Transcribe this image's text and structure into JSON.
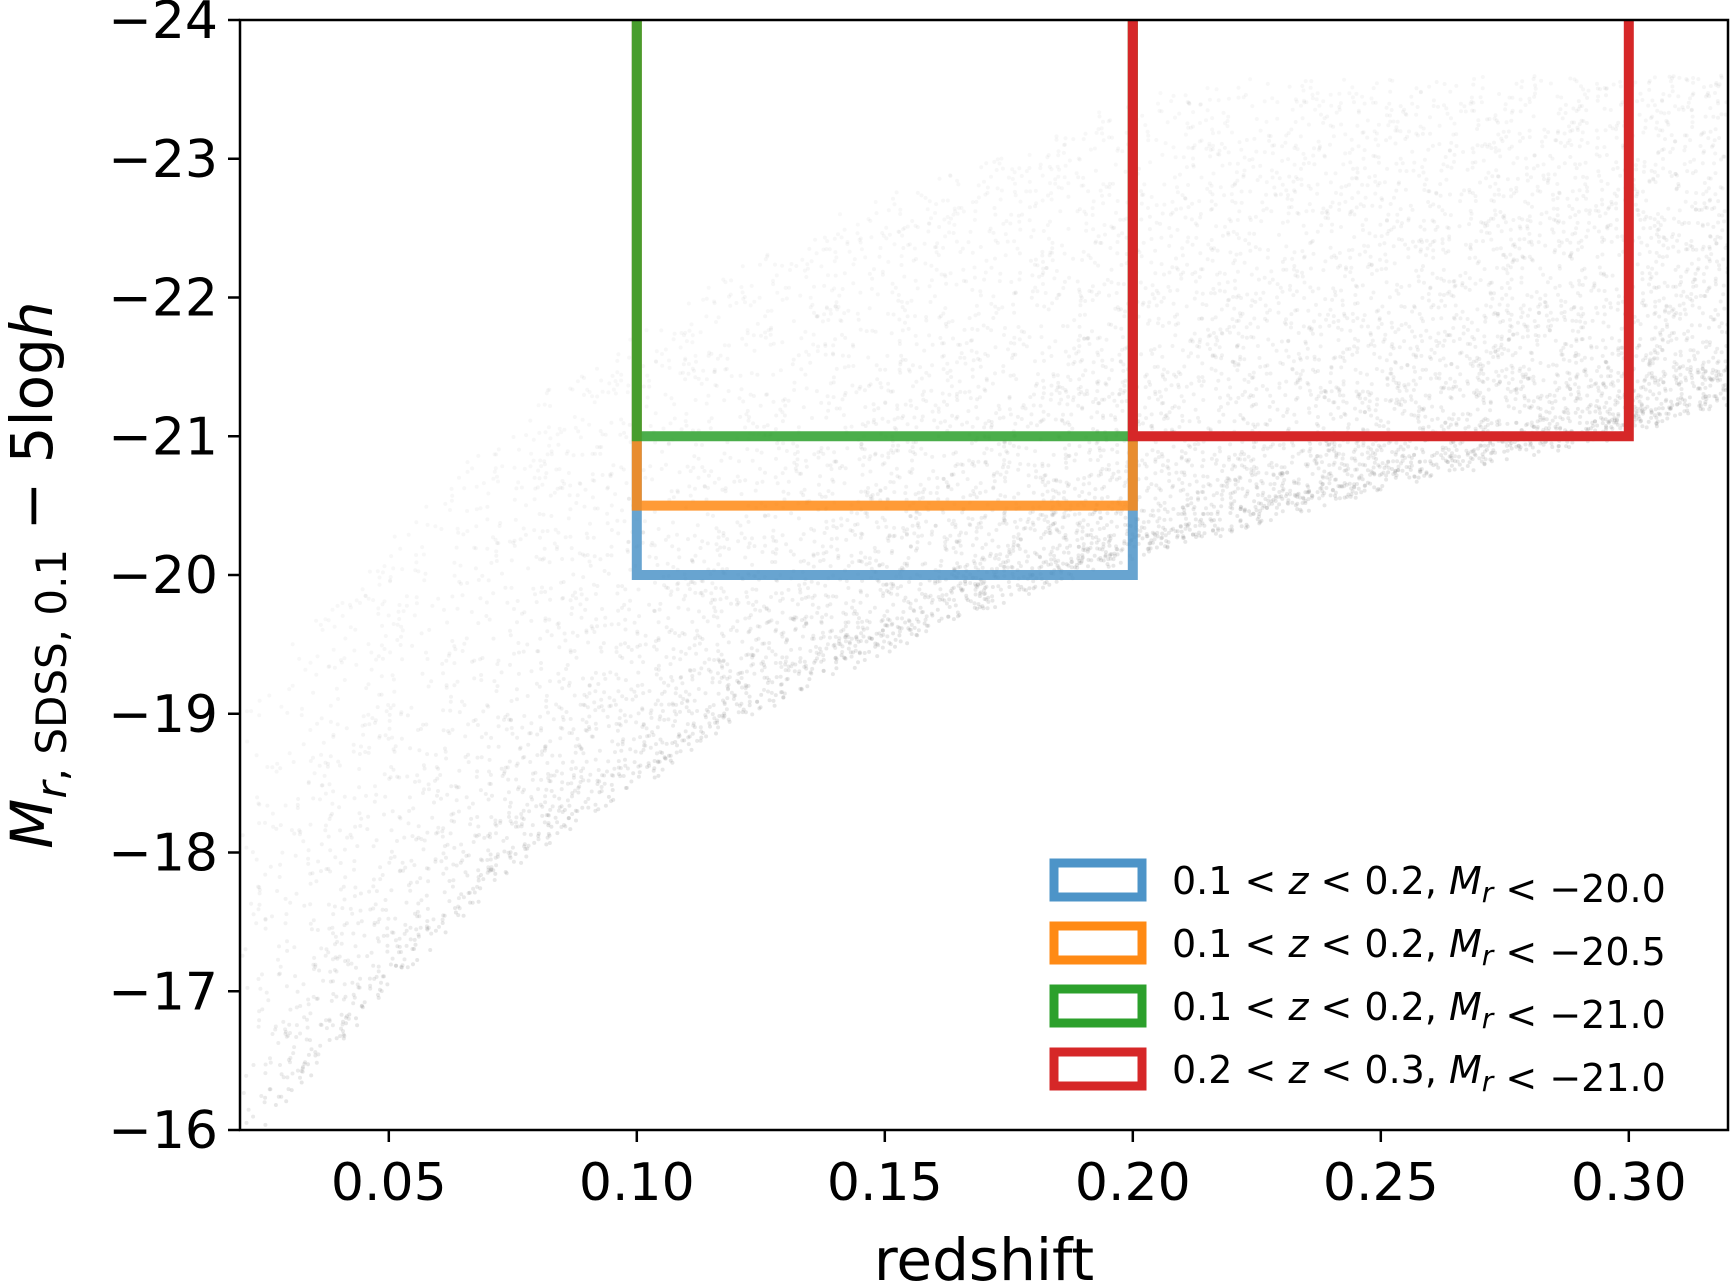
{
  "chart_data": {
    "type": "scatter",
    "title": "",
    "xlabel": "redshift",
    "ylabel": {
      "main": "M",
      "sub_italic": "r",
      "sub_rest": ", SDSS, 0.1",
      "tail": " − 5log",
      "tail_italic": "h"
    },
    "xlim": [
      0.02,
      0.32
    ],
    "ylim": [
      -16,
      -24
    ],
    "y_inverted": true,
    "x_ticks": [
      0.05,
      0.1,
      0.15,
      0.2,
      0.25,
      0.3
    ],
    "x_tick_labels": [
      "0.05",
      "0.10",
      "0.15",
      "0.20",
      "0.25",
      "0.30"
    ],
    "y_ticks": [
      -24,
      -23,
      -22,
      -21,
      -20,
      -19,
      -18,
      -17,
      -16
    ],
    "y_tick_labels": [
      "−24",
      "−23",
      "−22",
      "−21",
      "−20",
      "−19",
      "−18",
      "−17",
      "−16"
    ],
    "grid": false,
    "legend_position": "lower-right",
    "background_scatter": {
      "color": "#808080",
      "description_points": "dense gray point cloud of galaxies; lower envelope follows a flux limit rising from about -16 at z=0.03 to about -21 at z=0.32",
      "envelope": [
        [
          0.02,
          -15.8
        ],
        [
          0.05,
          -17.0
        ],
        [
          0.08,
          -18.0
        ],
        [
          0.12,
          -18.9
        ],
        [
          0.16,
          -19.6
        ],
        [
          0.2,
          -20.1
        ],
        [
          0.25,
          -20.6
        ],
        [
          0.3,
          -21.0
        ],
        [
          0.32,
          -21.2
        ]
      ]
    },
    "series": [
      {
        "name": {
          "a": "0.1",
          "b": "0.2",
          "c": "−20.0"
        },
        "color": "#4d94c8",
        "x_range": [
          0.1,
          0.2
        ],
        "m_limit": -20.0
      },
      {
        "name": {
          "a": "0.1",
          "b": "0.2",
          "c": "−20.5"
        },
        "color": "#ff8a14",
        "x_range": [
          0.1,
          0.2
        ],
        "m_limit": -20.5
      },
      {
        "name": {
          "a": "0.1",
          "b": "0.2",
          "c": "−21.0"
        },
        "color": "#2ca02c",
        "x_range": [
          0.1,
          0.2
        ],
        "m_limit": -21.0
      },
      {
        "name": {
          "a": "0.2",
          "b": "0.3",
          "c": "−21.0"
        },
        "color": "#d62728",
        "x_range": [
          0.2,
          0.3
        ],
        "m_limit": -21.0
      }
    ]
  }
}
